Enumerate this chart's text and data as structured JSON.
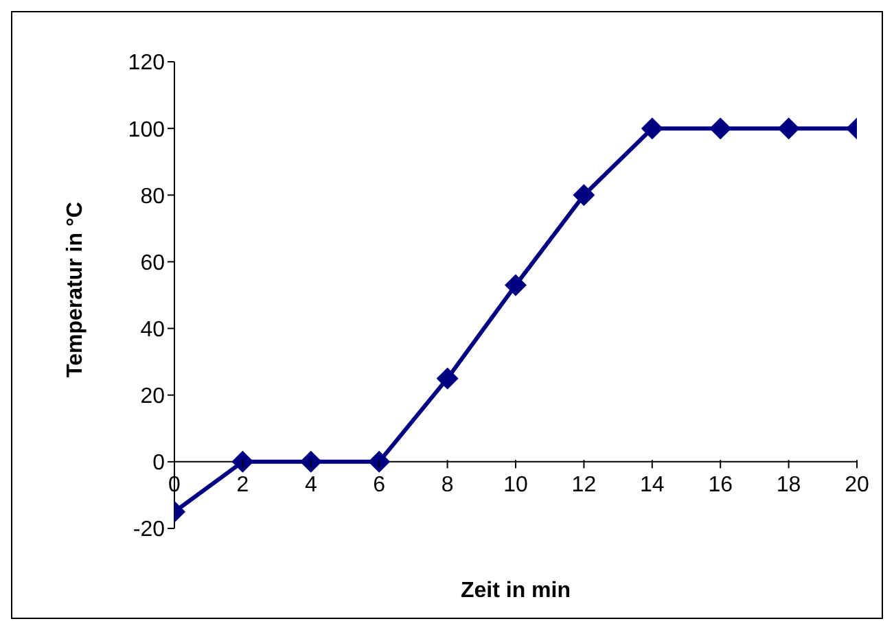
{
  "chart_data": {
    "type": "line",
    "xlabel": "Zeit in min",
    "ylabel": "Temperatur in °C",
    "x": [
      0,
      2,
      4,
      6,
      8,
      10,
      12,
      14,
      16,
      18,
      20
    ],
    "series": [
      {
        "color": "#000080",
        "values": [
          -15,
          0,
          0,
          0,
          25,
          53,
          80,
          100,
          100,
          100,
          100
        ]
      }
    ],
    "xlim": [
      0,
      20
    ],
    "xticks": [
      0,
      2,
      4,
      6,
      8,
      10,
      12,
      14,
      16,
      18,
      20
    ],
    "ylim": [
      -20,
      120
    ],
    "yticks": [
      -20,
      0,
      20,
      40,
      60,
      80,
      100,
      120
    ],
    "grid": false,
    "legend": false,
    "marker": "diamond",
    "line_style": "solid"
  }
}
